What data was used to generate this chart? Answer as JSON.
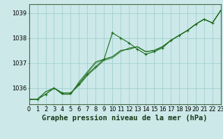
{
  "title": "Graphe pression niveau de la mer (hPa)",
  "bg_color": "#cce8e8",
  "grid_color": "#99cccc",
  "line_color": "#1a6b1a",
  "x_min": 0,
  "x_max": 23,
  "y_min": 1035.35,
  "y_max": 1039.35,
  "y_ticks": [
    1036,
    1037,
    1038,
    1039
  ],
  "x_ticks": [
    0,
    1,
    2,
    3,
    4,
    5,
    6,
    7,
    8,
    9,
    10,
    11,
    12,
    13,
    14,
    15,
    16,
    17,
    18,
    19,
    20,
    21,
    22,
    23
  ],
  "series": [
    [
      1035.55,
      1035.55,
      1035.75,
      1036.0,
      1035.8,
      1035.8,
      1036.15,
      1036.55,
      1036.85,
      1037.15,
      1038.2,
      1038.0,
      1037.8,
      1037.55,
      1037.35,
      1037.45,
      1037.6,
      1037.9,
      1038.1,
      1038.3,
      1038.55,
      1038.75,
      1038.6,
      1039.1
    ],
    [
      1035.55,
      1035.55,
      1035.75,
      1036.0,
      1035.8,
      1035.8,
      1036.1,
      1036.5,
      1036.8,
      1037.1,
      1037.2,
      1037.45,
      1037.6,
      1037.65,
      1037.45,
      1037.5,
      1037.65,
      1037.9,
      1038.1,
      1038.3,
      1038.55,
      1038.75,
      1038.6,
      1039.1
    ],
    [
      1035.55,
      1035.55,
      1035.85,
      1036.0,
      1035.75,
      1035.75,
      1036.2,
      1036.6,
      1037.0,
      1037.15,
      1037.25,
      1037.5,
      1037.55,
      1037.65,
      1037.45,
      1037.5,
      1037.65,
      1037.9,
      1038.1,
      1038.3,
      1038.55,
      1038.75,
      1038.6,
      1039.1
    ],
    [
      1035.55,
      1035.55,
      1035.85,
      1036.0,
      1035.75,
      1035.75,
      1036.25,
      1036.65,
      1037.05,
      1037.15,
      1037.25,
      1037.5,
      1037.55,
      1037.65,
      1037.45,
      1037.5,
      1037.65,
      1037.9,
      1038.1,
      1038.3,
      1038.55,
      1038.75,
      1038.6,
      1039.1
    ]
  ],
  "main_series_idx": 0,
  "marker": "+",
  "marker_size": 3,
  "label_fontsize": 6,
  "title_fontsize": 7.5
}
